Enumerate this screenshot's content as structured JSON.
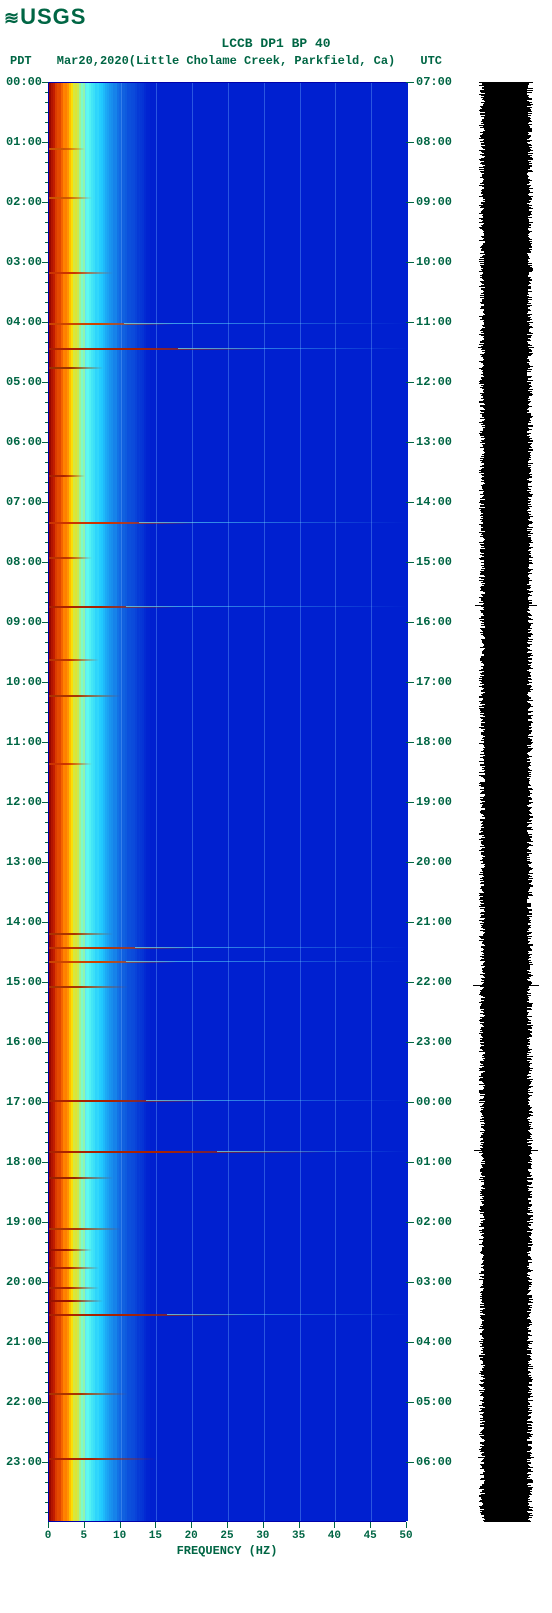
{
  "logo_text": "USGS",
  "title": "LCCB DP1 BP 40",
  "tz_left": "PDT",
  "date": "Mar20,2020",
  "location": "(Little Cholame Creek, Parkfield, Ca)",
  "tz_right": "UTC",
  "xaxis": {
    "title": "FREQUENCY (HZ)",
    "min": 0,
    "max": 50,
    "ticks": [
      0,
      5,
      10,
      15,
      20,
      25,
      30,
      35,
      40,
      45,
      50
    ]
  },
  "yaxis_left_labels": [
    "00:00",
    "01:00",
    "02:00",
    "03:00",
    "04:00",
    "05:00",
    "06:00",
    "07:00",
    "08:00",
    "09:00",
    "10:00",
    "11:00",
    "12:00",
    "13:00",
    "14:00",
    "15:00",
    "16:00",
    "17:00",
    "18:00",
    "19:00",
    "20:00",
    "21:00",
    "22:00",
    "23:00"
  ],
  "yaxis_right_labels": [
    "07:00",
    "08:00",
    "09:00",
    "10:00",
    "11:00",
    "12:00",
    "13:00",
    "14:00",
    "15:00",
    "16:00",
    "17:00",
    "18:00",
    "19:00",
    "20:00",
    "21:00",
    "22:00",
    "23:00",
    "00:00",
    "01:00",
    "02:00",
    "03:00",
    "04:00",
    "05:00",
    "06:00"
  ],
  "spectrogram": {
    "type": "spectrogram",
    "background_color": "#0020d0",
    "gradient_stops": [
      {
        "hz": 0.0,
        "color": "#880000"
      },
      {
        "hz": 0.7,
        "color": "#cc2200"
      },
      {
        "hz": 2.0,
        "color": "#ff7700"
      },
      {
        "hz": 3.0,
        "color": "#ffdd00"
      },
      {
        "hz": 5.0,
        "color": "#66ffee"
      },
      {
        "hz": 7.0,
        "color": "#22ccff"
      },
      {
        "hz": 10.0,
        "color": "#1060e0"
      },
      {
        "hz": 14.0,
        "color": "#0020d0"
      }
    ],
    "grid_color": "#78beff",
    "horizontal_events": [
      {
        "row": 0.045,
        "color": "#cc5500",
        "extent": 0.1
      },
      {
        "row": 0.079,
        "color": "#cc5500",
        "extent": 0.12
      },
      {
        "row": 0.131,
        "color": "#cc3300",
        "extent": 0.18
      },
      {
        "row": 0.167,
        "color": "#cc4400",
        "extent": 0.35
      },
      {
        "row": 0.184,
        "color": "#aa2200",
        "extent": 0.6
      },
      {
        "row": 0.197,
        "color": "#993300",
        "extent": 0.15
      },
      {
        "row": 0.272,
        "color": "#aa2200",
        "extent": 0.1
      },
      {
        "row": 0.305,
        "color": "#cc3300",
        "extent": 0.42
      },
      {
        "row": 0.329,
        "color": "#bb3300",
        "extent": 0.12
      },
      {
        "row": 0.363,
        "color": "#aa2200",
        "extent": 0.36
      },
      {
        "row": 0.4,
        "color": "#bb3300",
        "extent": 0.14
      },
      {
        "row": 0.425,
        "color": "#aa3300",
        "extent": 0.2
      },
      {
        "row": 0.472,
        "color": "#cc3300",
        "extent": 0.12
      },
      {
        "row": 0.59,
        "color": "#aa3300",
        "extent": 0.18
      },
      {
        "row": 0.6,
        "color": "#bb3300",
        "extent": 0.4
      },
      {
        "row": 0.61,
        "color": "#cc4400",
        "extent": 0.36
      },
      {
        "row": 0.627,
        "color": "#aa3300",
        "extent": 0.22
      },
      {
        "row": 0.706,
        "color": "#aa2200",
        "extent": 0.45
      },
      {
        "row": 0.742,
        "color": "#aa2200",
        "extent": 0.78
      },
      {
        "row": 0.76,
        "color": "#992200",
        "extent": 0.18
      },
      {
        "row": 0.795,
        "color": "#aa3300",
        "extent": 0.2
      },
      {
        "row": 0.81,
        "color": "#991100",
        "extent": 0.12
      },
      {
        "row": 0.822,
        "color": "#aa2200",
        "extent": 0.14
      },
      {
        "row": 0.836,
        "color": "#aa2200",
        "extent": 0.14
      },
      {
        "row": 0.845,
        "color": "#991100",
        "extent": 0.15
      },
      {
        "row": 0.855,
        "color": "#aa2200",
        "extent": 0.55
      },
      {
        "row": 0.91,
        "color": "#aa3300",
        "extent": 0.22
      },
      {
        "row": 0.955,
        "color": "#aa2200",
        "extent": 0.3
      }
    ]
  },
  "waveform": {
    "body_color": "#000000",
    "background_color": "#ffffff",
    "spikes": [
      {
        "row": 0.131,
        "amp": 0.45
      },
      {
        "row": 0.184,
        "amp": 0.7
      },
      {
        "row": 0.305,
        "amp": 0.55
      },
      {
        "row": 0.363,
        "amp": 0.78
      },
      {
        "row": 0.6,
        "amp": 0.6
      },
      {
        "row": 0.627,
        "amp": 0.82
      },
      {
        "row": 0.742,
        "amp": 0.8
      },
      {
        "row": 0.91,
        "amp": 0.5
      },
      {
        "row": 0.955,
        "amp": 0.7
      }
    ]
  },
  "colors": {
    "text": "#006644",
    "axis": "#006644"
  }
}
